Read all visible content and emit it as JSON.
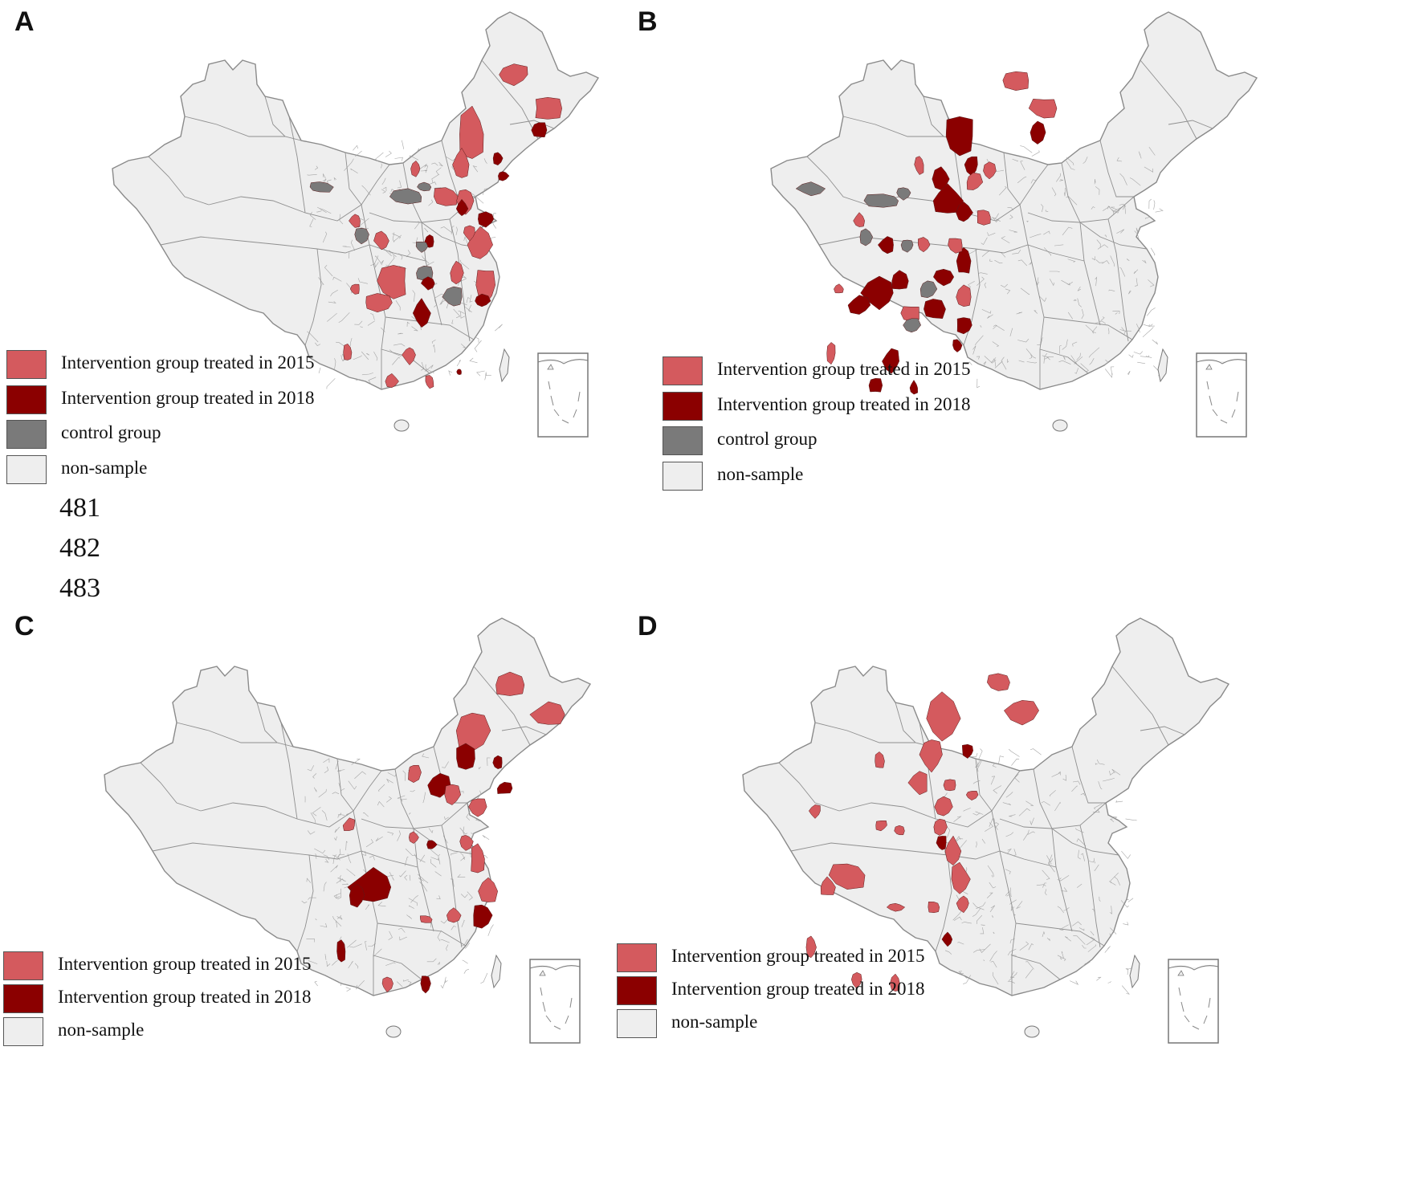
{
  "colors": {
    "treated_2015": "#d45a5e",
    "treated_2018": "#8b0000",
    "control": "#7a7a7a",
    "non_sample": "#eeeeee",
    "border": "#8a8a8a"
  },
  "panels": [
    {
      "letter": "A",
      "legend": [
        {
          "label": "Intervention group treated in 2015",
          "color": "treated_2015"
        },
        {
          "label": "Intervention group treated in 2018",
          "color": "treated_2018"
        },
        {
          "label": "control group",
          "color": "control"
        },
        {
          "label": "non-sample",
          "color": "non_sample"
        }
      ]
    },
    {
      "letter": "B",
      "legend": [
        {
          "label": "Intervention group treated in 2015",
          "color": "treated_2015"
        },
        {
          "label": "Intervention group treated in 2018",
          "color": "treated_2018"
        },
        {
          "label": "control group",
          "color": "control"
        },
        {
          "label": "non-sample",
          "color": "non_sample"
        }
      ]
    },
    {
      "letter": "C",
      "legend": [
        {
          "label": "Intervention group treated in 2015",
          "color": "treated_2015"
        },
        {
          "label": "Intervention group treated in 2018",
          "color": "treated_2018"
        },
        {
          "label": "non-sample",
          "color": "non_sample"
        }
      ]
    },
    {
      "letter": "D",
      "legend": [
        {
          "label": "Intervention group treated in 2015",
          "color": "treated_2015"
        },
        {
          "label": "Intervention group treated in 2018",
          "color": "treated_2018"
        },
        {
          "label": "non-sample",
          "color": "non_sample"
        }
      ]
    }
  ],
  "line_numbers": [
    "481",
    "482",
    "483"
  ]
}
